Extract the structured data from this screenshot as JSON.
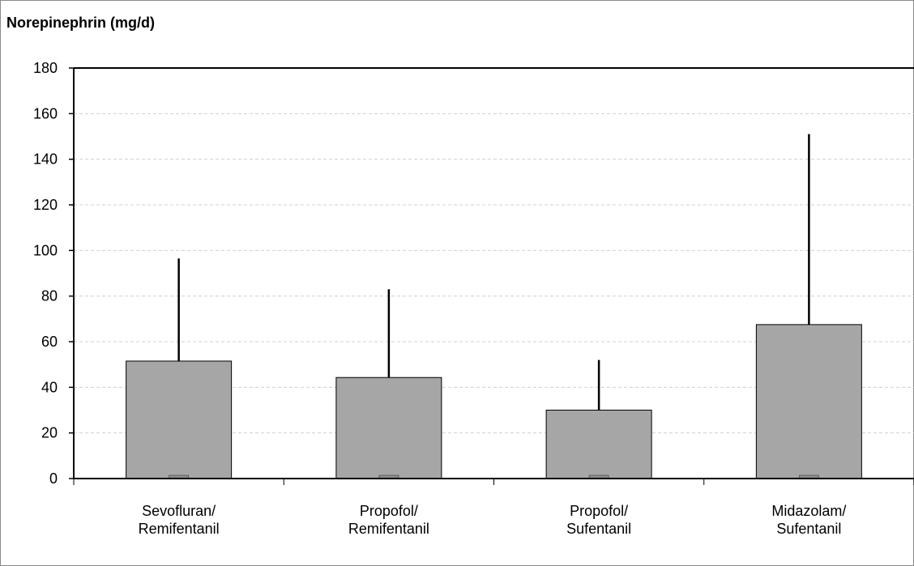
{
  "chart_data": {
    "type": "bar",
    "title": "Norepinephrin (mg/d)",
    "categories": [
      [
        "Sevofluran/",
        "Remifentanil"
      ],
      [
        "Propofol/",
        "Remifentanil"
      ],
      [
        "Propofol/",
        "Sufentanil"
      ],
      [
        "Midazolam/",
        "Sufentanil"
      ]
    ],
    "series": [
      {
        "values": [
          51.5,
          44.3,
          30.0,
          67.5
        ],
        "error_upper": [
          96.5,
          83.0,
          52.0,
          151.0
        ]
      }
    ],
    "ylim": [
      0,
      180
    ],
    "yticks": [
      0,
      20,
      40,
      60,
      80,
      100,
      120,
      140,
      160,
      180
    ],
    "grid": true,
    "bar_color": "#a6a6a6",
    "grid_color": "#d0d0d0"
  }
}
